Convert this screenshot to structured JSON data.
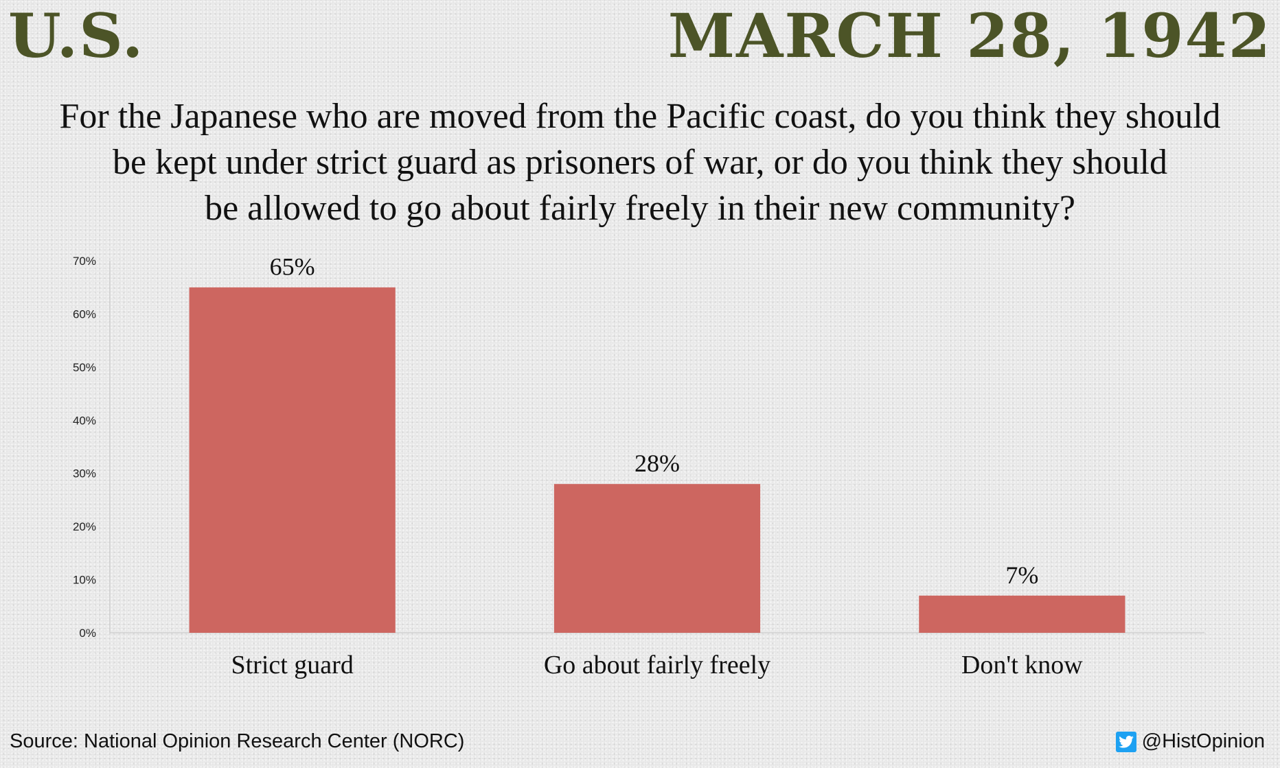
{
  "header": {
    "country": "U.S.",
    "date": "MARCH 28, 1942"
  },
  "question_lines": [
    "For the Japanese who are moved from the Pacific coast, do you think they should",
    "be kept under strict guard as prisoners of  war, or do you think they should",
    "be allowed to go about fairly freely in their new community?"
  ],
  "chart_data": {
    "type": "bar",
    "categories": [
      "Strict guard",
      "Go about fairly freely",
      "Don't know"
    ],
    "values": [
      65,
      28,
      7
    ],
    "data_labels": [
      "65%",
      "28%",
      "7%"
    ],
    "ylim": [
      0,
      70
    ],
    "yticks": [
      "0%",
      "10%",
      "20%",
      "30%",
      "40%",
      "50%",
      "60%",
      "70%"
    ],
    "bar_color": "#cd6660",
    "grid": false,
    "legend": "none"
  },
  "footer": {
    "source": "Source: National Opinion Research Center (NORC)",
    "handle": "@HistOpinion",
    "icon": "twitter-icon"
  }
}
